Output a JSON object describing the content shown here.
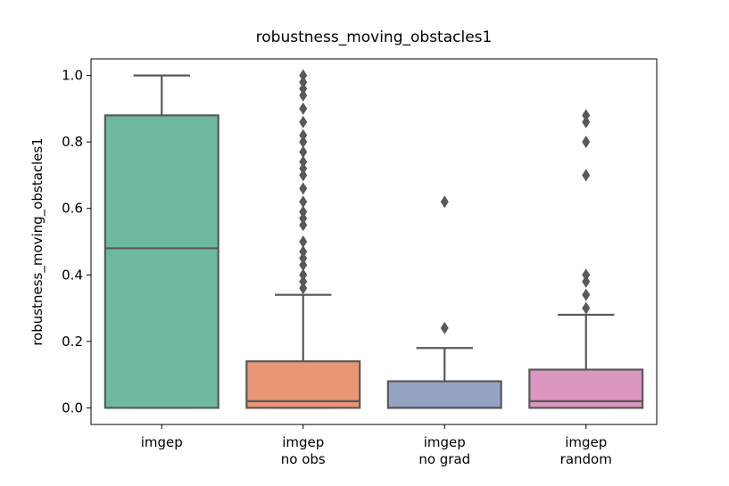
{
  "chart_data": {
    "type": "box",
    "title": "robustness_moving_obstacles1",
    "ylabel": "robustness_moving_obstacles1",
    "categories": [
      "imgep",
      "imgep\nno obs",
      "imgep\nno grad",
      "imgep\nrandom"
    ],
    "line_color": "#595959",
    "boxes": [
      {
        "color": "#6fb9a0",
        "whislo": 0,
        "q1": 0,
        "median": 0.48,
        "q3": 0.88,
        "whishi": 1.0,
        "fliers": []
      },
      {
        "color": "#e99675",
        "whislo": 0,
        "q1": 0,
        "median": 0.02,
        "q3": 0.14,
        "whishi": 0.34,
        "fliers": [
          0.36,
          0.38,
          0.4,
          0.43,
          0.45,
          0.47,
          0.5,
          0.55,
          0.57,
          0.59,
          0.62,
          0.66,
          0.7,
          0.72,
          0.74,
          0.77,
          0.8,
          0.82,
          0.86,
          0.9,
          0.94,
          0.96,
          0.98,
          1.0
        ]
      },
      {
        "color": "#95a3c3",
        "whislo": 0,
        "q1": 0,
        "median": 0,
        "q3": 0.08,
        "whishi": 0.18,
        "fliers": [
          0.24,
          0.62
        ]
      },
      {
        "color": "#db96c0",
        "whislo": 0,
        "q1": 0,
        "median": 0.02,
        "q3": 0.115,
        "whishi": 0.28,
        "fliers": [
          0.3,
          0.34,
          0.38,
          0.4,
          0.7,
          0.8,
          0.86,
          0.88
        ]
      }
    ],
    "ylim": [
      -0.05,
      1.05
    ],
    "yticks": [
      {
        "value": 0,
        "label": "0.0"
      },
      {
        "value": 0.2,
        "label": "0.2"
      },
      {
        "value": 0.4,
        "label": "0.4"
      },
      {
        "value": 0.6,
        "label": "0.6"
      },
      {
        "value": 0.8,
        "label": "0.8"
      },
      {
        "value": 1.0,
        "label": "1.0"
      }
    ]
  }
}
